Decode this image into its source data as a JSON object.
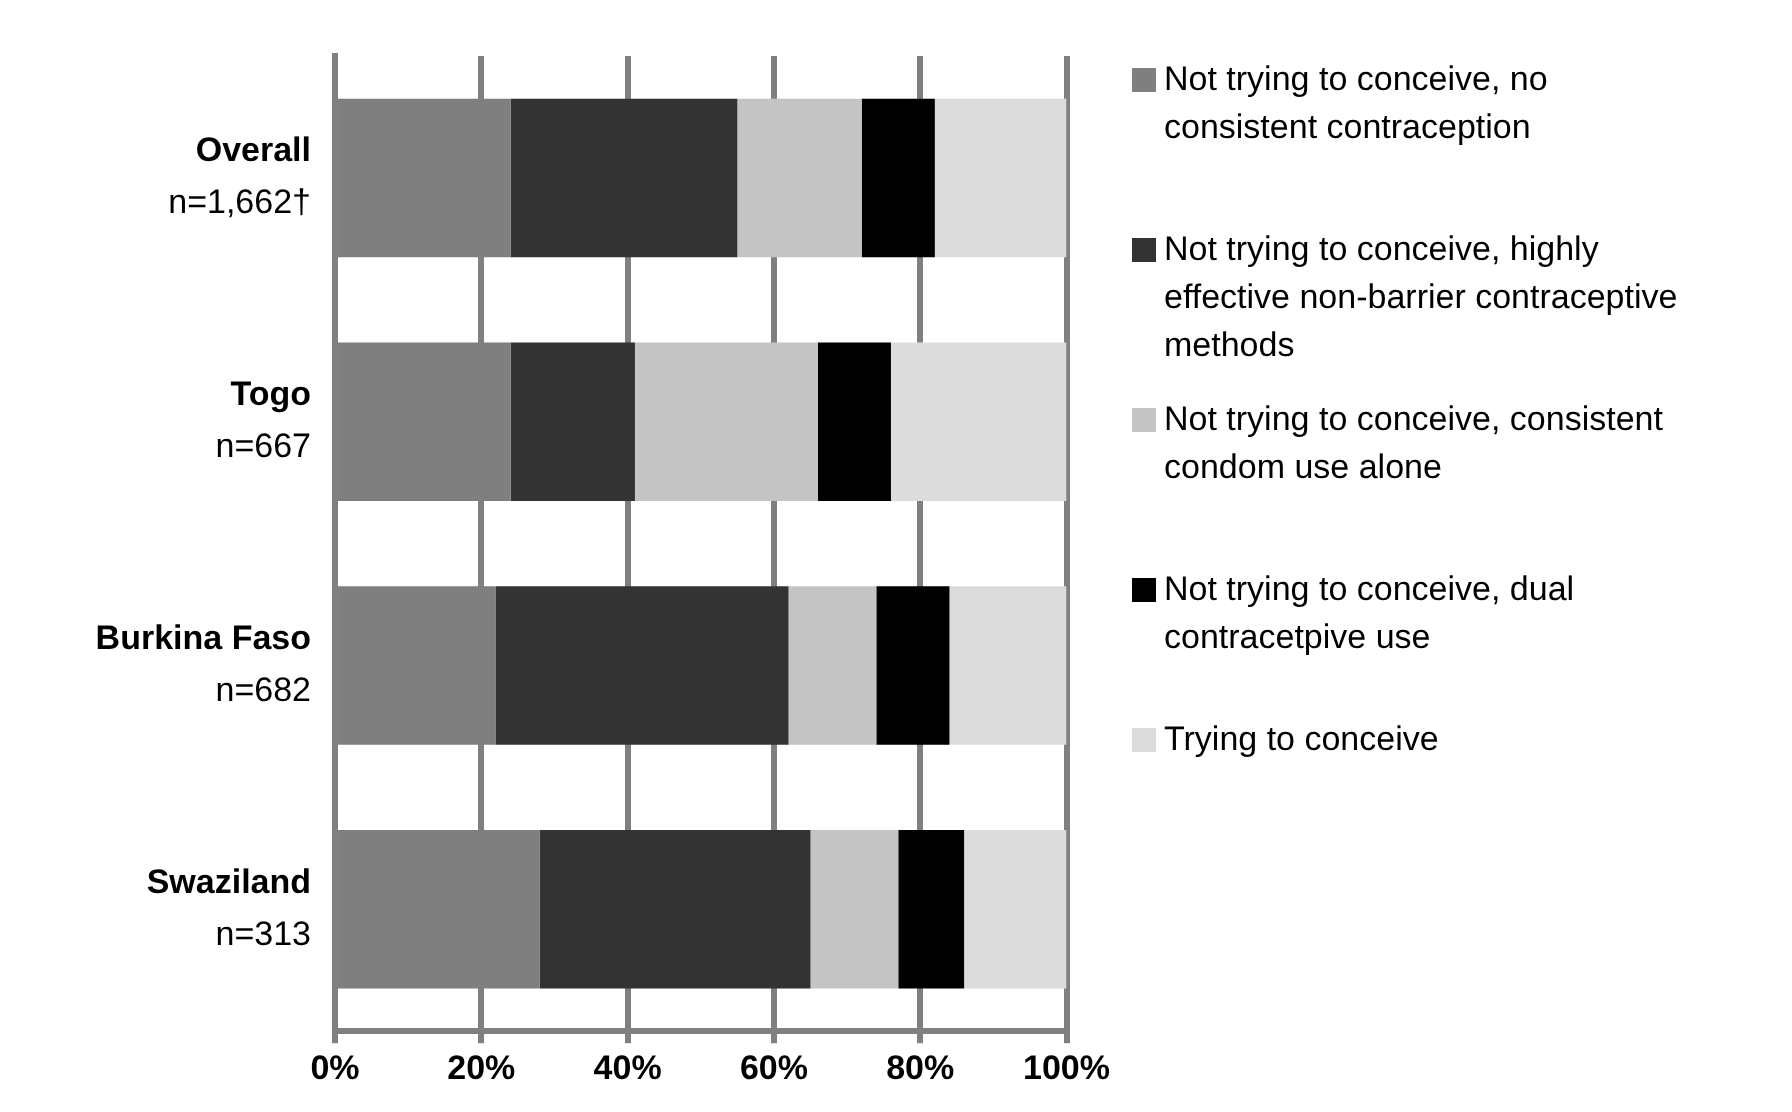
{
  "chart_data": {
    "type": "bar",
    "orientation": "horizontal",
    "stacked": true,
    "categories": [
      "Overall\nn=1,662†",
      "Togo\nn=667",
      "Burkina Faso\nn=682",
      "Swaziland\nn=313"
    ],
    "series": [
      {
        "name": "Not trying to conceive, no consistent contraception",
        "color": "#7f7f7f",
        "values": [
          24,
          24,
          22,
          28
        ]
      },
      {
        "name": "Not trying to conceive, highly effective non-barrier contraceptive methods",
        "color": "#333333",
        "values": [
          31,
          17,
          40,
          37
        ]
      },
      {
        "name": "Not trying to conceive, consistent condom use alone",
        "color": "#c4c4c4",
        "values": [
          17,
          25,
          12,
          12
        ]
      },
      {
        "name": "Not trying to conceive, dual contracetpive use",
        "color": "#000000",
        "values": [
          10,
          10,
          10,
          9
        ]
      },
      {
        "name": "Trying to conceive",
        "color": "#dcdcdc",
        "values": [
          18,
          24,
          16,
          14
        ]
      }
    ],
    "xlim": [
      0,
      100
    ],
    "xticks": [
      {
        "value": 0,
        "label": "0%"
      },
      {
        "value": 20,
        "label": "20%"
      },
      {
        "value": 40,
        "label": "40%"
      },
      {
        "value": 60,
        "label": "60%"
      },
      {
        "value": 80,
        "label": "80%"
      },
      {
        "value": 100,
        "label": "100%"
      }
    ],
    "grid": "x",
    "legend": "right"
  }
}
